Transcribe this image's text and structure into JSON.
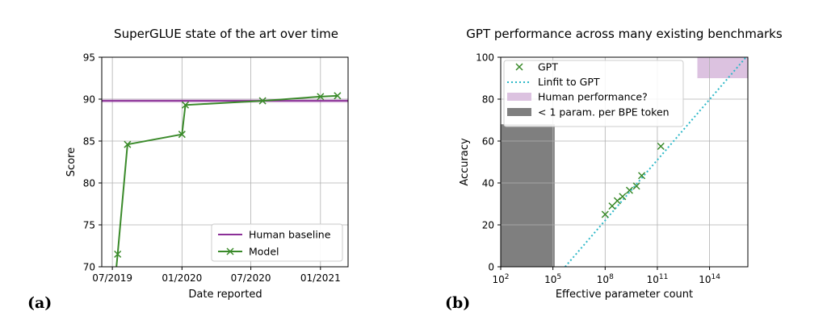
{
  "chart_data": [
    {
      "type": "line",
      "panel_label": "(a)",
      "title": "SuperGLUE state of the art over time",
      "xlabel": "Date reported",
      "ylabel": "Score",
      "x_is_date": true,
      "xlim": [
        "2019-06-03",
        "2021-03-15"
      ],
      "ylim": [
        70,
        95
      ],
      "xticks": [
        {
          "value": "2019-07-01",
          "label": "07/2019"
        },
        {
          "value": "2020-01-01",
          "label": "01/2020"
        },
        {
          "value": "2020-07-01",
          "label": "07/2020"
        },
        {
          "value": "2021-01-01",
          "label": "01/2021"
        }
      ],
      "yticks": [
        70,
        75,
        80,
        85,
        90,
        95
      ],
      "grid": true,
      "legend": "lower-right",
      "series": [
        {
          "name": "Human baseline",
          "kind": "hline",
          "color": "#8b2f97",
          "y": 89.8
        },
        {
          "name": "Model",
          "kind": "line-marker",
          "marker": "x",
          "color": "#3a8a2a",
          "x": [
            "2019-07-01",
            "2019-07-15",
            "2019-08-10",
            "2020-01-01",
            "2020-01-10",
            "2020-08-01",
            "2021-01-01",
            "2021-02-15"
          ],
          "y": [
            65.0,
            71.5,
            84.6,
            85.8,
            89.3,
            89.8,
            90.3,
            90.4
          ]
        }
      ]
    },
    {
      "type": "scatter",
      "panel_label": "(b)",
      "title": "GPT performance across many existing benchmarks",
      "xlabel": "Effective parameter count",
      "ylabel": "Accuracy",
      "xscale": "log",
      "xlim_log10": [
        2,
        16.2
      ],
      "ylim": [
        0,
        100
      ],
      "xticks": [
        {
          "exp": 2,
          "label": "10",
          "sup": "2"
        },
        {
          "exp": 5,
          "label": "10",
          "sup": "5"
        },
        {
          "exp": 8,
          "label": "10",
          "sup": "8"
        },
        {
          "exp": 11,
          "label": "10",
          "sup": "11"
        },
        {
          "exp": 14,
          "label": "10",
          "sup": "14"
        }
      ],
      "yticks": [
        0,
        20,
        40,
        60,
        80,
        100
      ],
      "grid": true,
      "legend": "top-left",
      "legend_entries": [
        {
          "label": "GPT",
          "kind": "marker",
          "color": "#3a8a2a"
        },
        {
          "label": "Linfit to GPT",
          "kind": "dotted",
          "color": "#2eb8c8"
        },
        {
          "label": "Human performance?",
          "kind": "patch",
          "color": "#dcc2e0"
        },
        {
          "label": "< 1 param. per BPE token",
          "kind": "patch",
          "color": "#7f7f7f"
        }
      ],
      "gpt_points": {
        "color": "#3a8a2a",
        "log10_params": [
          8.0,
          8.4,
          8.7,
          9.0,
          9.4,
          9.8,
          10.1,
          11.2
        ],
        "accuracy": [
          25,
          29,
          31.5,
          33.5,
          36.5,
          38.5,
          43.5,
          57.5
        ]
      },
      "linfit": {
        "color": "#2eb8c8",
        "log10_params": [
          5.7,
          16.2
        ],
        "accuracy": [
          0,
          101
        ]
      },
      "human_band": {
        "color": "#dcc2e0",
        "log10_params": [
          13.3,
          16.2
        ],
        "accuracy": [
          90,
          100
        ]
      },
      "bpe_band": {
        "color": "#7f7f7f",
        "log10_params": [
          2,
          5.1
        ],
        "accuracy": [
          0,
          68
        ]
      }
    }
  ]
}
